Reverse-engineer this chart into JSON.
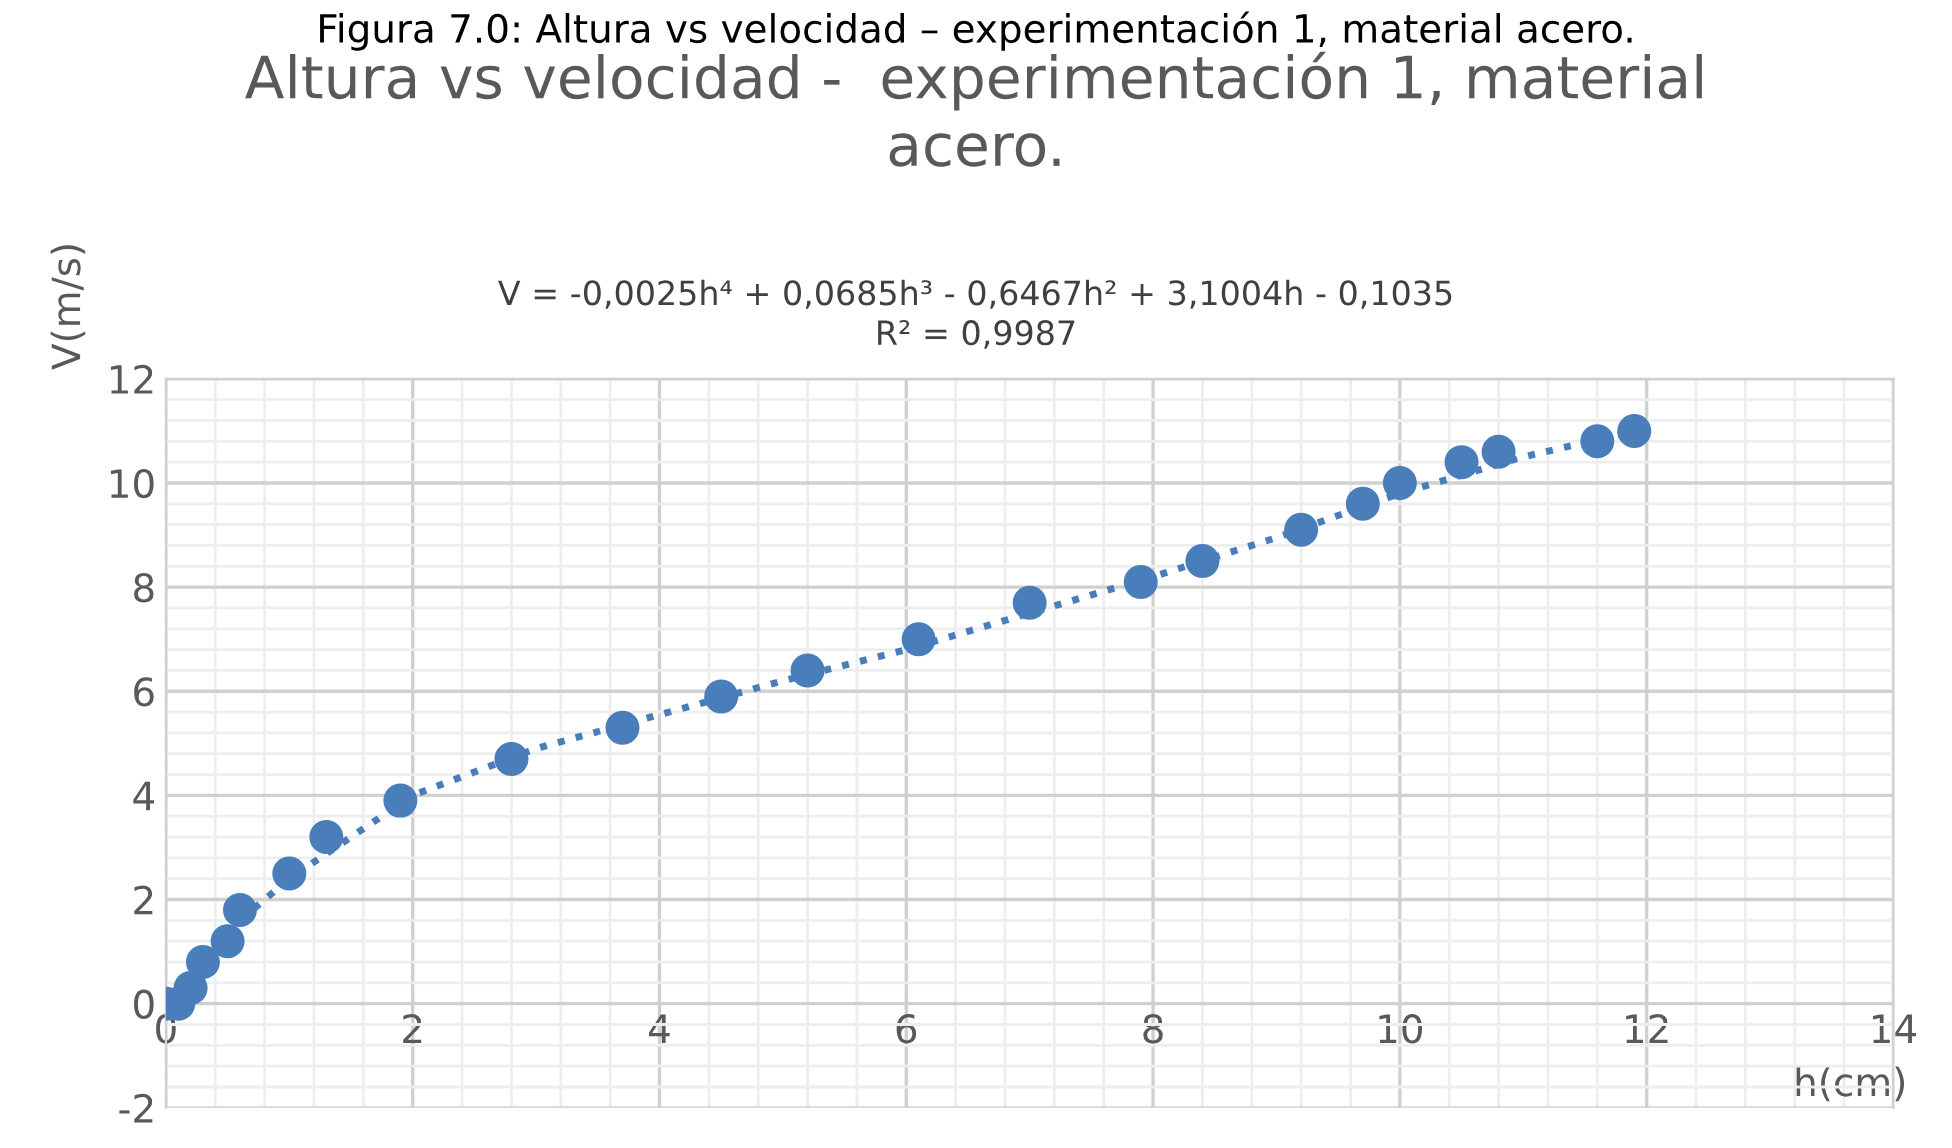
{
  "chart_data": {
    "type": "scatter",
    "title": "Altura vs velocidad -  experimentación 1, material\nacero.",
    "xlabel": "h(cm)",
    "ylabel": "V(m/s)",
    "annotations": [
      "Figura 7.0: Altura vs velocidad – experimentación 1, material acero.",
      "V = -0,0025h⁴ + 0,0685h³ - 0,6467h² + 3,1004h - 0,1035\nR² = 0,9987"
    ],
    "series": [
      {
        "color": "#4a7ebb",
        "marker": "circle",
        "x": [
          0,
          0.1,
          0.2,
          0.3,
          0.5,
          0.6,
          1,
          1.3,
          1.9,
          2.8,
          3.7,
          4.5,
          5.2,
          6.1,
          7,
          7.9,
          8.4,
          9.2,
          9.7,
          10,
          10.5,
          10.8,
          11.6,
          11.9
        ],
        "values": [
          0,
          0,
          0.3,
          0.8,
          1.2,
          1.8,
          2.5,
          3.2,
          3.9,
          4.7,
          5.3,
          5.9,
          6.4,
          7.0,
          7.7,
          8.1,
          8.5,
          9.1,
          9.6,
          10.0,
          10.4,
          10.6,
          10.8,
          11.0
        ]
      },
      {
        "type": "line",
        "color": "#4a7ebb",
        "line_style": "dotted",
        "x": [
          0.6,
          1,
          2,
          3,
          4,
          5,
          6,
          7,
          8,
          9,
          10,
          11,
          11.9
        ],
        "values": [
          1.6,
          2.4,
          4.0,
          4.9,
          5.55,
          6.2,
          6.8,
          7.5,
          8.2,
          8.95,
          9.8,
          10.5,
          11.0
        ]
      }
    ],
    "xlim": [
      0,
      14
    ],
    "xticks": [
      0,
      2,
      4,
      6,
      8,
      10,
      12,
      14
    ],
    "ylim": [
      -2,
      12
    ],
    "yticks": [
      -2,
      0,
      2,
      4,
      6,
      8,
      10,
      12
    ],
    "grid": true
  }
}
